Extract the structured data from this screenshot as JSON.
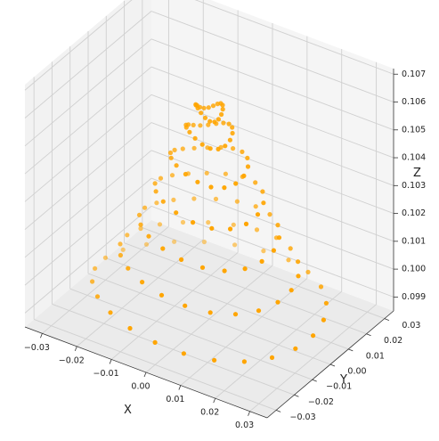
{
  "chart_data": {
    "type": "scatter",
    "projection": "3d",
    "title": "",
    "xlabel": "X",
    "ylabel": "Y",
    "zlabel": "Z",
    "xlim": [
      -0.035,
      0.035
    ],
    "ylim": [
      -0.035,
      0.035
    ],
    "zlim": [
      0.0985,
      0.1072
    ],
    "xticks": [
      "−0.03",
      "−0.02",
      "−0.01",
      "0.00",
      "0.01",
      "0.02",
      "0.03"
    ],
    "yticks": [
      "−0.03",
      "−0.02",
      "−0.01",
      "0.00",
      "0.01",
      "0.02",
      "0.03"
    ],
    "zticks": [
      "0.099",
      "0.100",
      "0.101",
      "0.102",
      "0.103",
      "0.104",
      "0.105",
      "0.106",
      "0.107"
    ],
    "grid": true,
    "point_color": "#FFA500",
    "pane_color": "#f2f2f2",
    "grid_color": "#d0d0d0",
    "shape": "spiral cone",
    "rings": [
      {
        "z": 0.0993,
        "radius": 0.03,
        "points": 24
      },
      {
        "z": 0.1005,
        "radius": 0.023,
        "points": 22
      },
      {
        "z": 0.1017,
        "radius": 0.018,
        "points": 20
      },
      {
        "z": 0.1029,
        "radius": 0.014,
        "points": 18
      },
      {
        "z": 0.1041,
        "radius": 0.01,
        "points": 18
      },
      {
        "z": 0.1052,
        "radius": 0.006,
        "points": 18
      },
      {
        "z": 0.106,
        "radius": 0.0035,
        "points": 18
      }
    ]
  }
}
